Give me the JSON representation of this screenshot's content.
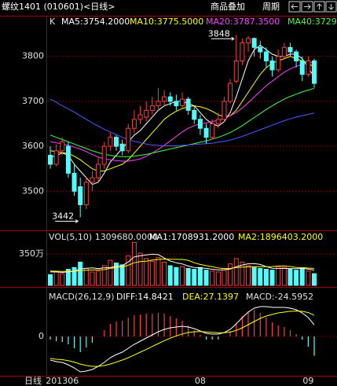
{
  "header": {
    "title": "螺纹1401 (010601)<日线>",
    "buttons": [
      "商品叠加",
      "周期"
    ]
  },
  "chart_data": [
    {
      "type": "candlestick",
      "label": "K",
      "open": [
        3580,
        3560,
        3590,
        3600,
        3540,
        3510,
        3470,
        3520,
        3530,
        3560,
        3600,
        3620,
        3605,
        3590,
        3640,
        3660,
        3665,
        3680,
        3690,
        3700,
        3710,
        3700,
        3690,
        3705,
        3680,
        3660,
        3640,
        3620,
        3650,
        3660,
        3700,
        3745,
        3790,
        3830,
        3840,
        3820,
        3810,
        3790,
        3770,
        3800,
        3820,
        3810,
        3790,
        3760,
        3790
      ],
      "high": [
        3600,
        3605,
        3620,
        3610,
        3560,
        3530,
        3530,
        3545,
        3575,
        3610,
        3630,
        3625,
        3615,
        3650,
        3680,
        3690,
        3700,
        3710,
        3730,
        3725,
        3720,
        3715,
        3720,
        3710,
        3690,
        3670,
        3650,
        3660,
        3675,
        3710,
        3750,
        3848,
        3840,
        3845,
        3842,
        3835,
        3820,
        3800,
        3815,
        3830,
        3830,
        3815,
        3800,
        3800,
        3795
      ],
      "low": [
        3550,
        3555,
        3580,
        3530,
        3490,
        3442,
        3460,
        3500,
        3520,
        3550,
        3590,
        3590,
        3580,
        3585,
        3630,
        3650,
        3655,
        3670,
        3680,
        3690,
        3690,
        3680,
        3685,
        3670,
        3650,
        3625,
        3605,
        3615,
        3640,
        3655,
        3695,
        3740,
        3780,
        3810,
        3800,
        3795,
        3775,
        3755,
        3765,
        3795,
        3800,
        3775,
        3745,
        3755,
        3730
      ],
      "close": [
        3560,
        3590,
        3610,
        3540,
        3500,
        3470,
        3520,
        3530,
        3560,
        3600,
        3620,
        3600,
        3590,
        3640,
        3660,
        3670,
        3680,
        3690,
        3700,
        3710,
        3700,
        3690,
        3705,
        3680,
        3660,
        3640,
        3620,
        3650,
        3660,
        3700,
        3740,
        3790,
        3830,
        3840,
        3820,
        3810,
        3790,
        3770,
        3800,
        3820,
        3810,
        3790,
        3760,
        3790,
        3740
      ],
      "up_color": "#ff3c3c",
      "down_color": "#54fcfc",
      "ylim": [
        3413,
        3887
      ],
      "yticks": [
        3500,
        3600,
        3700,
        3800
      ],
      "grid": true,
      "series": [
        {
          "name": "MA5:3754.2000",
          "color": "#ffffff",
          "values": [
            3575,
            3580,
            3585,
            3580,
            3560,
            3545,
            3530,
            3515,
            3520,
            3540,
            3565,
            3580,
            3595,
            3610,
            3625,
            3635,
            3650,
            3665,
            3680,
            3690,
            3695,
            3700,
            3700,
            3695,
            3690,
            3675,
            3660,
            3650,
            3645,
            3655,
            3675,
            3710,
            3750,
            3790,
            3815,
            3825,
            3815,
            3805,
            3800,
            3800,
            3805,
            3805,
            3795,
            3775,
            3754.2
          ]
        },
        {
          "name": "MA10:3775.5000",
          "color": "#ffff00",
          "values": [
            3590,
            3588,
            3586,
            3584,
            3578,
            3570,
            3560,
            3550,
            3545,
            3545,
            3550,
            3555,
            3560,
            3570,
            3585,
            3600,
            3615,
            3630,
            3645,
            3660,
            3670,
            3678,
            3684,
            3688,
            3690,
            3688,
            3684,
            3678,
            3670,
            3666,
            3668,
            3680,
            3700,
            3720,
            3740,
            3760,
            3775,
            3785,
            3790,
            3795,
            3800,
            3795,
            3790,
            3785,
            3775.5
          ]
        },
        {
          "name": "MA20:3787.3500",
          "color": "#ff40ff",
          "values": [
            3610,
            3608,
            3605,
            3602,
            3598,
            3594,
            3588,
            3582,
            3576,
            3572,
            3570,
            3568,
            3567,
            3567,
            3569,
            3572,
            3578,
            3585,
            3593,
            3602,
            3612,
            3622,
            3632,
            3640,
            3646,
            3650,
            3652,
            3655,
            3658,
            3662,
            3668,
            3675,
            3685,
            3697,
            3710,
            3722,
            3735,
            3745,
            3755,
            3765,
            3772,
            3778,
            3782,
            3785,
            3787.35
          ]
        },
        {
          "name": "MA40:3729",
          "color": "#40ff40",
          "values": [
            3625,
            3620,
            3615,
            3610,
            3605,
            3600,
            3595,
            3590,
            3586,
            3582,
            3580,
            3578,
            3577,
            3577,
            3578,
            3580,
            3582,
            3585,
            3588,
            3591,
            3594,
            3597,
            3600,
            3603,
            3606,
            3609,
            3612,
            3616,
            3620,
            3625,
            3631,
            3638,
            3646,
            3655,
            3664,
            3673,
            3682,
            3690,
            3698,
            3705,
            3711,
            3716,
            3721,
            3725,
            3729
          ]
        },
        {
          "color": "#4a5aff",
          "values": [
            3705,
            3698,
            3690,
            3683,
            3676,
            3668,
            3660,
            3652,
            3645,
            3638,
            3632,
            3626,
            3620,
            3615,
            3611,
            3608,
            3605,
            3603,
            3602,
            3601,
            3601,
            3601,
            3602,
            3603,
            3604,
            3605,
            3606,
            3607,
            3609,
            3611,
            3614,
            3618,
            3622,
            3627,
            3632,
            3637,
            3642,
            3647,
            3652,
            3657,
            3661,
            3665,
            3668,
            3671,
            3674
          ]
        }
      ]
    },
    {
      "type": "bar",
      "title": "VOL(5,10) 1309680.0000",
      "values": [
        1200000,
        1500000,
        1300000,
        1800000,
        2000000,
        2600000,
        1900000,
        1500000,
        1600000,
        2200000,
        2800000,
        2500000,
        2300000,
        3300000,
        4800000,
        3600000,
        3000000,
        2700000,
        3100000,
        2600000,
        2200000,
        2000000,
        2100000,
        1900000,
        1800000,
        2000000,
        1700000,
        1600000,
        1500000,
        1900000,
        2400000,
        3000000,
        2600000,
        2200000,
        2000000,
        1900000,
        1800000,
        1700000,
        2100000,
        2000000,
        1800000,
        1700000,
        1900000,
        1600000,
        1309680
      ],
      "ylim": [
        0,
        5800000
      ],
      "yticks": [
        {
          "value": 3500000,
          "label": "350万"
        }
      ],
      "series": [
        {
          "name": "MA1:1708931.2000",
          "color": "#ffffff",
          "values": [
            1500000,
            1500000,
            1450000,
            1520000,
            1560000,
            1840000,
            1920000,
            1960000,
            1880000,
            1960000,
            2000000,
            2120000,
            2180000,
            2620000,
            3180000,
            3300000,
            3400000,
            3480000,
            3440000,
            3060000,
            2720000,
            2520000,
            2400000,
            2160000,
            2000000,
            1960000,
            1900000,
            1800000,
            1720000,
            1740000,
            1820000,
            2080000,
            2280000,
            2420000,
            2440000,
            2340000,
            2100000,
            1920000,
            1900000,
            1900000,
            1880000,
            1860000,
            1900000,
            1820000,
            1708931.2
          ]
        },
        {
          "name": "MA2:1896403.2000",
          "color": "#ffff00",
          "values": [
            1600000,
            1580000,
            1560000,
            1560000,
            1580000,
            1650000,
            1700000,
            1720000,
            1740000,
            1760000,
            1920000,
            1980000,
            2040000,
            2250000,
            2520000,
            2650000,
            2700000,
            2830000,
            2900000,
            2940000,
            2920000,
            2910000,
            2900000,
            2800000,
            2530000,
            2340000,
            2210000,
            2100000,
            1940000,
            1870000,
            1890000,
            1990000,
            2040000,
            2070000,
            2090000,
            2080000,
            2090000,
            2100000,
            2160000,
            2170000,
            2110000,
            2000000,
            1990000,
            1930000,
            1896403.2
          ]
        }
      ]
    },
    {
      "type": "macd",
      "title": "MACD(26,12,9)",
      "x_label": "日线",
      "categories": [
        null,
        null,
        "201306",
        null,
        null,
        null,
        null,
        null,
        null,
        null,
        null,
        null,
        null,
        null,
        null,
        null,
        null,
        null,
        null,
        null,
        null,
        null,
        null,
        null,
        null,
        "08",
        null,
        null,
        null,
        null,
        null,
        null,
        null,
        null,
        null,
        null,
        null,
        null,
        null,
        null,
        null,
        null,
        null,
        "09",
        null
      ],
      "ylim": [
        -50,
        60
      ],
      "yticks": [
        0
      ],
      "up_color": "#ff3c3c",
      "down_color": "#54fcfc",
      "bars": {
        "name": "MACD:-24.5952",
        "values": [
          -4,
          -6,
          -7,
          -10,
          -15,
          -20,
          -14,
          -8,
          0,
          8,
          16,
          19,
          20,
          24,
          27,
          28,
          29,
          29,
          30,
          29,
          26,
          23,
          20,
          14,
          8,
          2,
          -4,
          -4,
          -4,
          0,
          7,
          17,
          26,
          32,
          34,
          30,
          24,
          18,
          14,
          12,
          8,
          3,
          -4,
          -13,
          -24.5952
        ]
      },
      "series": [
        {
          "name": "DIFF:14.8421",
          "color": "#ffffff",
          "values": [
            -30,
            -32,
            -33,
            -36,
            -40,
            -45,
            -44,
            -42,
            -38,
            -33,
            -27,
            -23,
            -20,
            -15,
            -10,
            -6,
            -2,
            2,
            6,
            9,
            11,
            12,
            13,
            12,
            10,
            7,
            4,
            3,
            3,
            5,
            9,
            16,
            24,
            31,
            36,
            38,
            38,
            37,
            37,
            37,
            36,
            34,
            30,
            24,
            14.8421
          ]
        },
        {
          "name": "DEA:27.1397",
          "color": "#ffff00",
          "values": [
            -28,
            -29,
            -29.5,
            -30.8,
            -32.6,
            -35.1,
            -36.9,
            -38,
            -38,
            -37,
            -35,
            -32.6,
            -30,
            -27,
            -23.6,
            -20,
            -16.4,
            -12.7,
            -9,
            -5.4,
            -2.1,
            0.7,
            3.2,
            5,
            6,
            6.2,
            5.8,
            5.2,
            4.8,
            4.8,
            5.6,
            7.7,
            11,
            15,
            19,
            23,
            26,
            28,
            30,
            31,
            32,
            32.4,
            32,
            30.4,
            27.1397
          ]
        }
      ]
    }
  ]
}
